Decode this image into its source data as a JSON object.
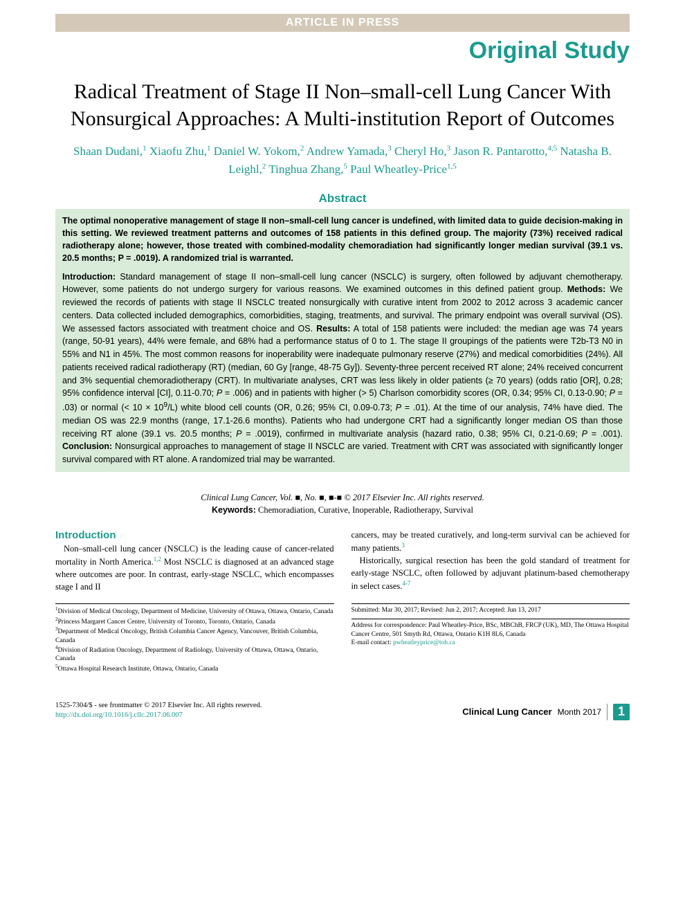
{
  "header": {
    "article_in_press": "ARTICLE IN PRESS",
    "original_study": "Original Study"
  },
  "title": "Radical Treatment of Stage II Non–small-cell Lung Cancer With Nonsurgical Approaches: A Multi-institution Report of Outcomes",
  "authors_html": "Shaan Dudani,<sup>1</sup> Xiaofu Zhu,<sup>1</sup> Daniel W. Yokom,<sup>2</sup> Andrew Yamada,<sup>3</sup> Cheryl Ho,<sup>3</sup> Jason R. Pantarotto,<sup>4,5</sup> Natasha B. Leighl,<sup>2</sup> Tinghua Zhang,<sup>5</sup> Paul Wheatley-Price<sup>1,5</sup>",
  "abstract": {
    "label": "Abstract",
    "summary": "The optimal nonoperative management of stage II non–small-cell lung cancer is undefined, with limited data to guide decision-making in this setting. We reviewed treatment patterns and outcomes of 158 patients in this defined group. The majority (73%) received radical radiotherapy alone; however, those treated with combined-modality chemoradiation had significantly longer median survival (39.1 vs. 20.5 months; P = .0019). A randomized trial is warranted.",
    "body_html": "<b>Introduction:</b> Standard management of stage II non–small-cell lung cancer (NSCLC) is surgery, often followed by adjuvant chemotherapy. However, some patients do not undergo surgery for various reasons. We examined outcomes in this defined patient group. <b>Methods:</b> We reviewed the records of patients with stage II NSCLC treated nonsurgically with curative intent from 2002 to 2012 across 3 academic cancer centers. Data collected included demographics, comorbidities, staging, treatments, and survival. The primary endpoint was overall survival (OS). We assessed factors associated with treatment choice and OS. <b>Results:</b> A total of 158 patients were included: the median age was 74 years (range, 50-91 years), 44% were female, and 68% had a performance status of 0 to 1. The stage II groupings of the patients were T2b-T3 N0 in 55% and N1 in 45%. The most common reasons for inoperability were inadequate pulmonary reserve (27%) and medical comorbidities (24%). All patients received radical radiotherapy (RT) (median, 60 Gy [range, 48-75 Gy]). Seventy-three percent received RT alone; 24% received concurrent and 3% sequential chemoradiotherapy (CRT). In multivariate analyses, CRT was less likely in older patients (≥ 70 years) (odds ratio [OR], 0.28; 95% confidence interval [CI], 0.11-0.70; <i>P</i> = .006) and in patients with higher (> 5) Charlson comorbidity scores (OR, 0.34; 95% CI, 0.13-0.90; <i>P</i> = .03) or normal (< 10 × 10<sup>9</sup>/L) white blood cell counts (OR, 0.26; 95% CI, 0.09-0.73; <i>P</i> = .01). At the time of our analysis, 74% have died. The median OS was 22.9 months (range, 17.1-26.6 months). Patients who had undergone CRT had a significantly longer median OS than those receiving RT alone (39.1 vs. 20.5 months; <i>P</i> = .0019), confirmed in multivariate analysis (hazard ratio, 0.38; 95% CI, 0.21-0.69; <i>P</i> = .001). <b>Conclusion:</b> Nonsurgical approaches to management of stage II NSCLC are varied. Treatment with CRT was associated with significantly longer survival compared with RT alone. A randomized trial may be warranted."
  },
  "citation": "Clinical Lung Cancer, Vol. ■, No. ■, ■-■ © 2017 Elsevier Inc. All rights reserved.",
  "keywords": {
    "label": "Keywords:",
    "text": "Chemoradiation, Curative, Inoperable, Radiotherapy, Survival"
  },
  "introduction": {
    "heading": "Introduction",
    "para1_html": "Non–small-cell lung cancer (NSCLC) is the leading cause of cancer-related mortality in North America.<sup>1,2</sup> Most NSCLC is diagnosed at an advanced stage where outcomes are poor. In contrast, early-stage NSCLC, which encompasses stage I and II",
    "para2_html": "cancers, may be treated curatively, and long-term survival can be achieved for many patients.<sup>3</sup>",
    "para3_html": "Historically, surgical resection has been the gold standard of treatment for early-stage NSCLC, often followed by adjuvant platinum-based chemotherapy in select cases.<sup>4-7</sup>"
  },
  "affiliations": {
    "left": [
      "<sup>1</sup>Division of Medical Oncology, Department of Medicine, University of Ottawa, Ottawa, Ontario, Canada",
      "<sup>2</sup>Princess Margaret Cancer Centre, University of Toronto, Toronto, Ontario, Canada",
      "<sup>3</sup>Department of Medical Oncology, British Columbia Cancer Agency, Vancouver, British Columbia, Canada",
      "<sup>4</sup>Division of Radiation Oncology, Department of Radiology, University of Ottawa, Ottawa, Ontario, Canada",
      "<sup>5</sup>Ottawa Hospital Research Institute, Ottawa, Ontario, Canada"
    ],
    "right_submitted": "Submitted: Mar 30, 2017; Revised: Jun 2, 2017; Accepted: Jun 13, 2017",
    "right_address": "Address for correspondence: Paul Wheatley-Price, BSc, MBChB, FRCP (UK), MD, The Ottawa Hospital Cancer Centre, 501 Smyth Rd, Ottawa, Ontario K1H 8L6, Canada",
    "right_email_label": "E-mail contact:",
    "right_email": "pwheatleyprice@toh.ca"
  },
  "footer": {
    "copyright": "1525-7304/$ - see frontmatter © 2017 Elsevier Inc. All rights reserved.",
    "doi": "http://dx.doi.org/10.1016/j.cllc.2017.06.007",
    "journal": "Clinical Lung Cancer",
    "date": "Month 2017",
    "page": "1"
  },
  "colors": {
    "accent": "#1a9b8e",
    "abstract_bg": "#d9ebd9",
    "press_bg": "#d4c9b8",
    "text": "#000000",
    "white": "#ffffff"
  }
}
